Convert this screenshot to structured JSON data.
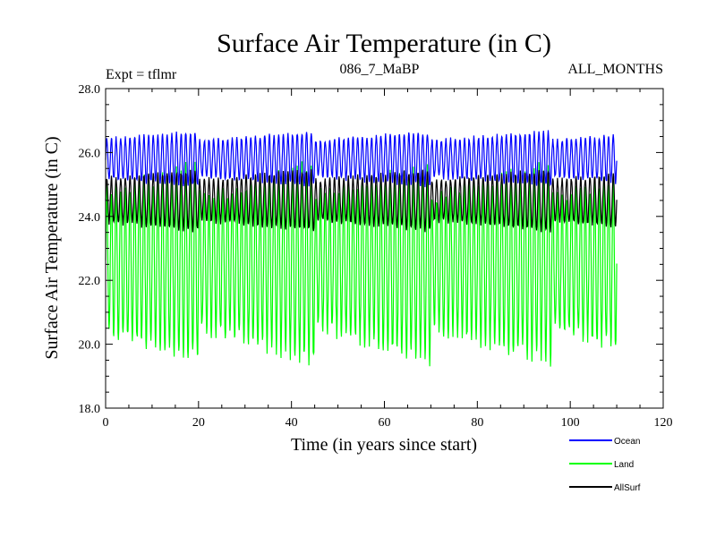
{
  "chart_data": {
    "type": "line",
    "title": "Surface Air Temperature (in C)",
    "subtitle_left": "Expt = tflmr",
    "subtitle_center": "086_7_MaBP",
    "subtitle_right": "ALL_MONTHS",
    "xlabel": "Time (in years since start)",
    "ylabel": "Surface Air Temperature (in C)",
    "xlim": [
      0,
      120
    ],
    "ylim": [
      18.0,
      28.0
    ],
    "xticks": [
      0,
      20,
      40,
      60,
      80,
      100,
      120
    ],
    "yticks": [
      18.0,
      20.0,
      22.0,
      24.0,
      26.0,
      28.0
    ],
    "xtick_labels": [
      "0",
      "20",
      "40",
      "60",
      "80",
      "100",
      "120"
    ],
    "ytick_labels": [
      "18.0",
      "20.0",
      "22.0",
      "24.0",
      "26.0",
      "28.0"
    ],
    "grid": false,
    "legend_position": "bottom-right-outside",
    "series": [
      {
        "name": "Ocean",
        "color": "#0000ff",
        "years": 110,
        "samples_per_year": 12,
        "min_approx": 24.9,
        "max_approx": 26.7,
        "mean_approx": 25.6
      },
      {
        "name": "Land",
        "color": "#00ff00",
        "years": 110,
        "samples_per_year": 12,
        "min_approx": 19.3,
        "max_approx": 25.8,
        "mean_approx": 22.6
      },
      {
        "name": "AllSurf",
        "color": "#000000",
        "years": 110,
        "samples_per_year": 12,
        "min_approx": 23.5,
        "max_approx": 25.5,
        "mean_approx": 24.5
      }
    ]
  }
}
